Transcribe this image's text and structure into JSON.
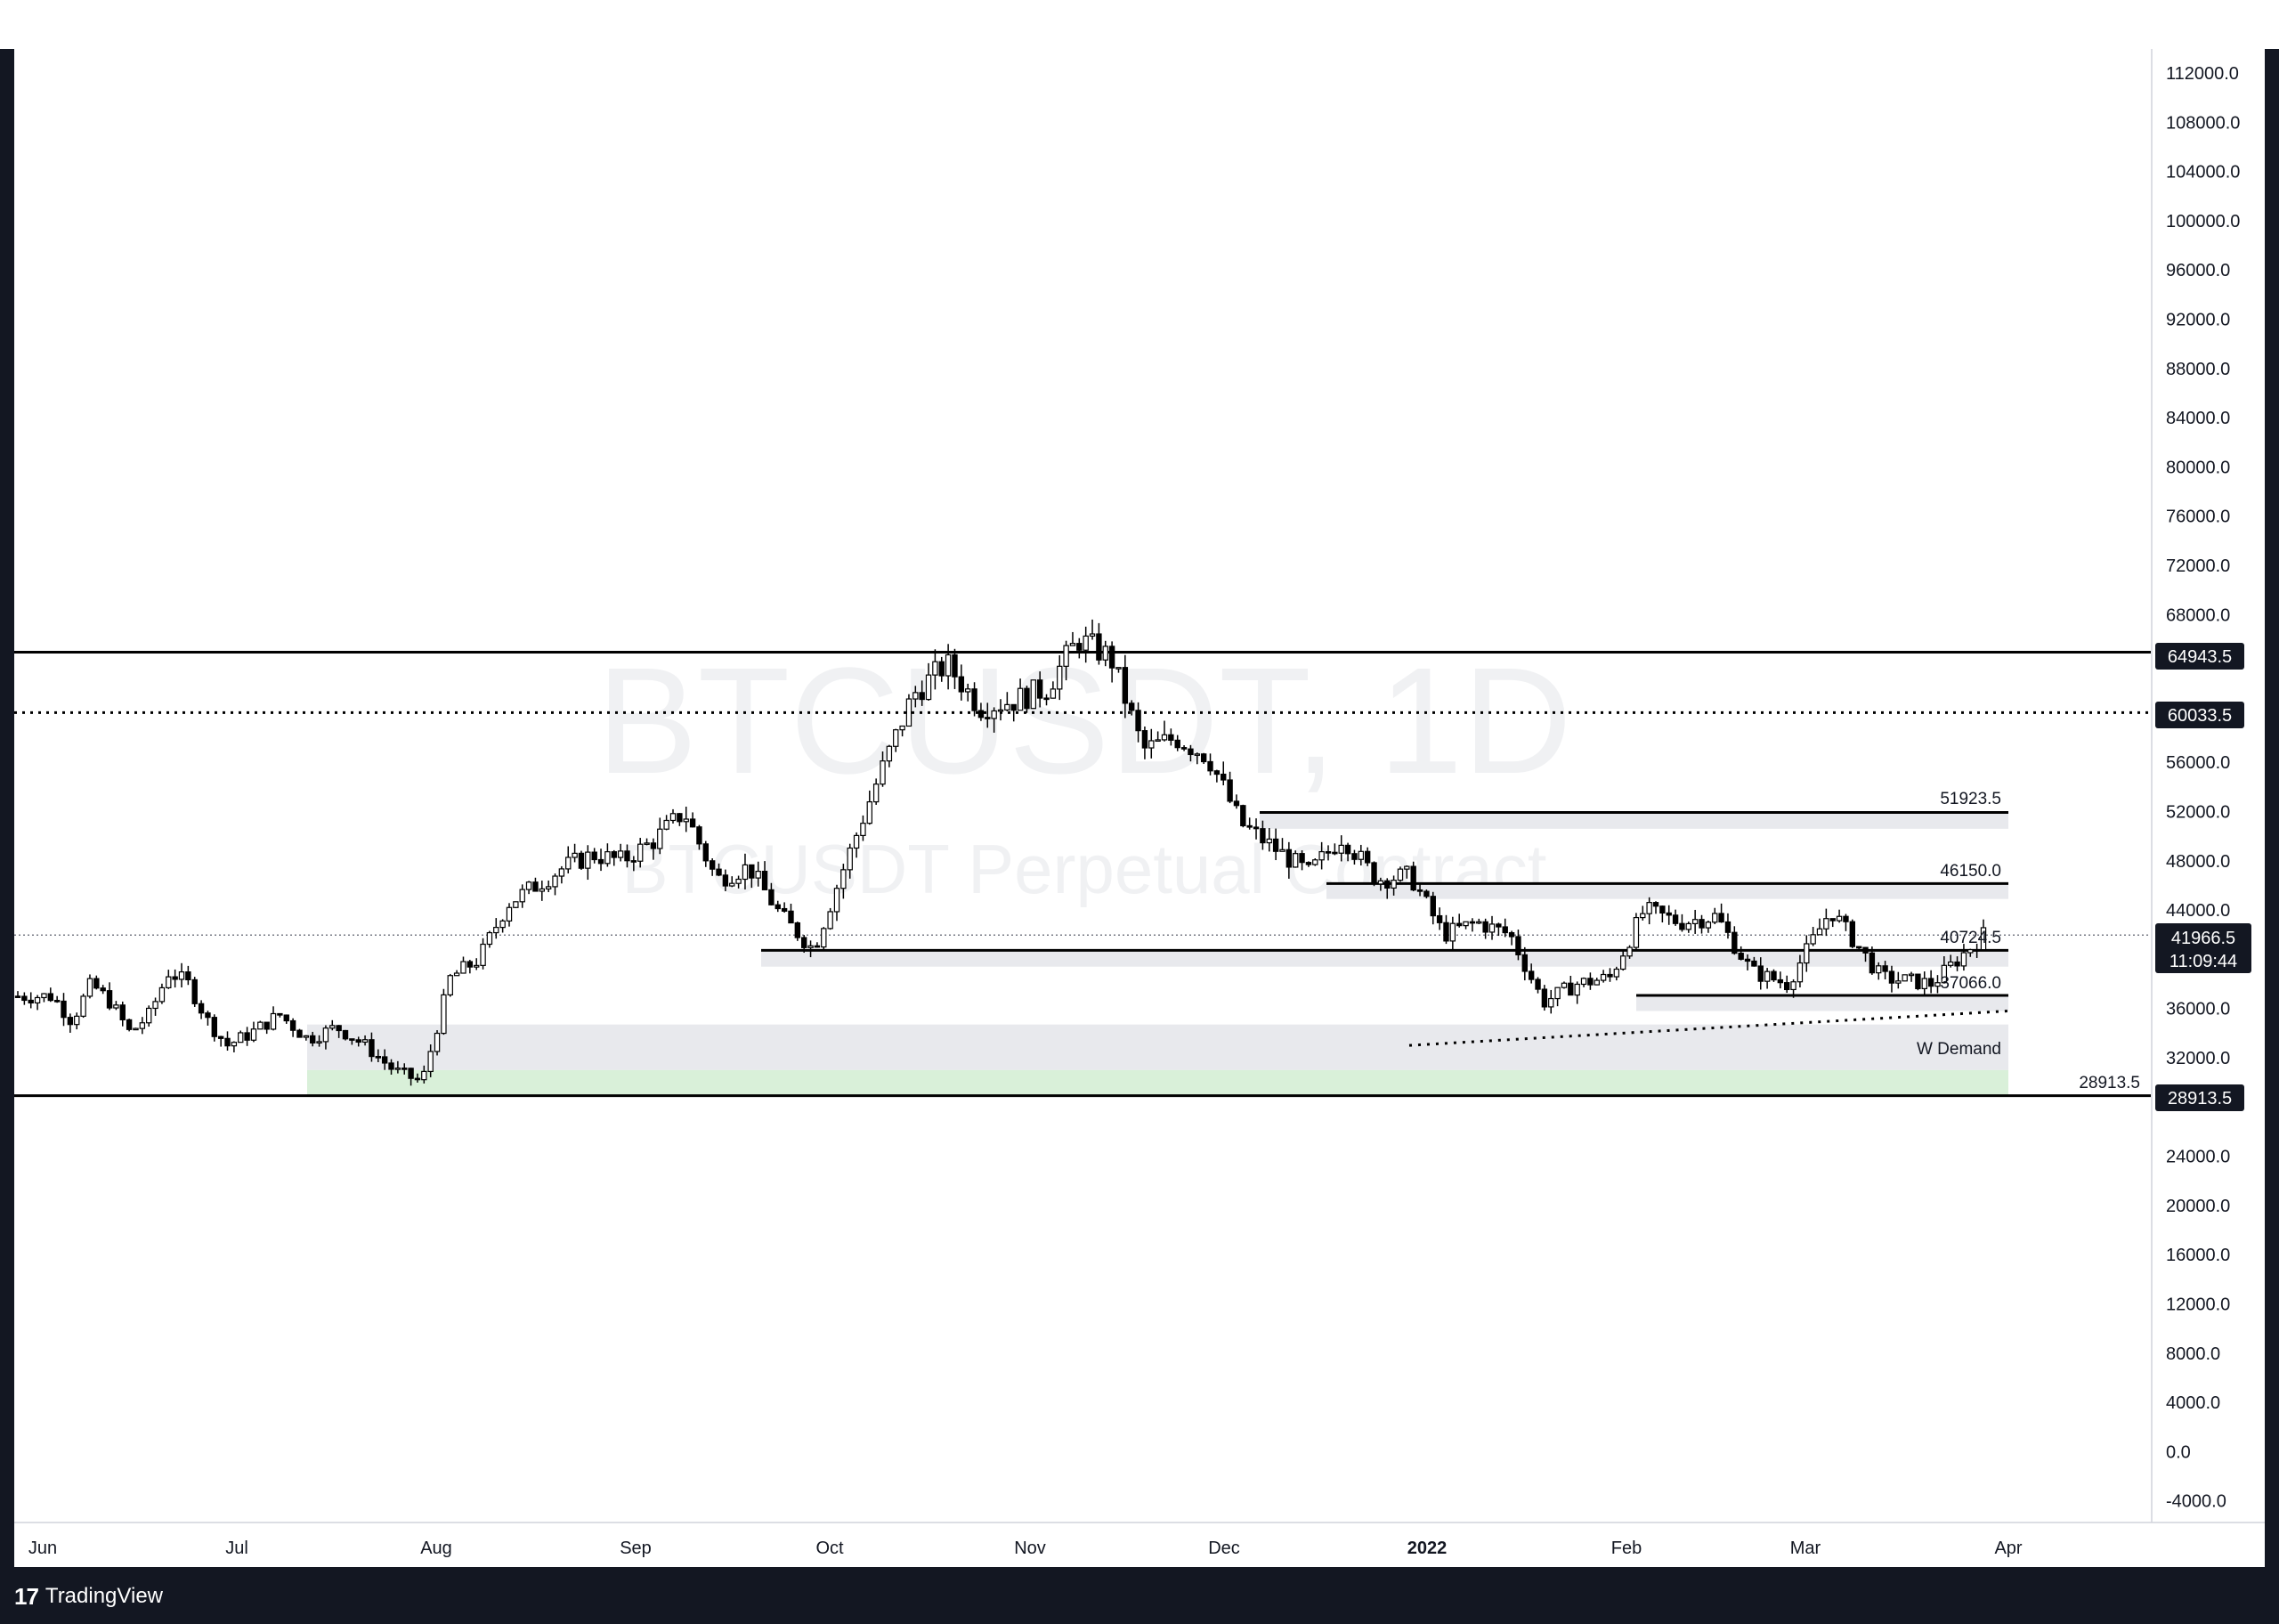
{
  "watermark": {
    "title": "BTCUSDT, 1D",
    "subtitle": "BTCUSDT Perpetual Contract"
  },
  "brand": {
    "logo": "17",
    "name": "TradingView"
  },
  "colors": {
    "candle": "#000000",
    "zone_grey": "#e8e9ed",
    "zone_green": "#d9f0d9",
    "axis_text": "#131722",
    "label_bg": "#131722",
    "label_text": "#ffffff",
    "frame": "#131722",
    "watermark": "#f0f1f3"
  },
  "price_axis": {
    "ticks": [
      "112000.0",
      "108000.0",
      "104000.0",
      "100000.0",
      "96000.0",
      "92000.0",
      "88000.0",
      "84000.0",
      "80000.0",
      "76000.0",
      "72000.0",
      "68000.0",
      "56000.0",
      "52000.0",
      "48000.0",
      "44000.0",
      "36000.0",
      "32000.0",
      "24000.0",
      "20000.0",
      "16000.0",
      "12000.0",
      "8000.0",
      "4000.0",
      "0.0",
      "-4000.0"
    ],
    "current_price": "41966.5",
    "countdown": "11:09:44",
    "price_labels": [
      "64943.5",
      "60033.5",
      "28913.5"
    ]
  },
  "time_axis": {
    "labels": [
      "Jun",
      "Jul",
      "Aug",
      "Sep",
      "Oct",
      "Nov",
      "Dec",
      "2022",
      "Feb",
      "Mar",
      "Apr"
    ]
  },
  "annotations": {
    "levels": [
      "51923.5",
      "46150.0",
      "40724.5",
      "37066.0",
      "28913.5"
    ],
    "zone_label": "W Demand"
  },
  "chart_data": {
    "type": "candlestick",
    "title": "BTCUSDT, 1D",
    "subtitle": "BTCUSDT Perpetual Contract",
    "ylim": [
      -4000,
      112000
    ],
    "x": [
      "Jun",
      "Jul",
      "Aug",
      "Sep",
      "Oct",
      "Nov",
      "Dec",
      "2022",
      "Feb",
      "Mar",
      "Apr"
    ],
    "close_path": [
      [
        "Jun",
        37000
      ],
      [
        "Jun",
        35000
      ],
      [
        "Jun",
        38000
      ],
      [
        "Jun",
        36500
      ],
      [
        "Jun",
        34000
      ],
      [
        "Jun",
        35500
      ],
      [
        "Jun",
        39000
      ],
      [
        "Jun",
        38000
      ],
      [
        "Jun",
        35000
      ],
      [
        "Jun",
        33000
      ],
      [
        "Jul",
        34000
      ],
      [
        "Jul",
        35500
      ],
      [
        "Jul",
        33500
      ],
      [
        "Jul",
        34500
      ],
      [
        "Jul",
        33000
      ],
      [
        "Jul",
        31000
      ],
      [
        "Jul",
        30000
      ],
      [
        "Aug",
        38500
      ],
      [
        "Aug",
        40000
      ],
      [
        "Aug",
        44500
      ],
      [
        "Aug",
        46000
      ],
      [
        "Aug",
        47500
      ],
      [
        "Aug",
        48500
      ],
      [
        "Aug",
        48000
      ],
      [
        "Sep",
        49500
      ],
      [
        "Sep",
        52000
      ],
      [
        "Sep",
        46500
      ],
      [
        "Sep",
        47500
      ],
      [
        "Sep",
        43500
      ],
      [
        "Sep",
        40800
      ],
      [
        "Oct",
        48000
      ],
      [
        "Oct",
        55000
      ],
      [
        "Oct",
        61500
      ],
      [
        "Oct",
        64000
      ],
      [
        "Oct",
        60500
      ],
      [
        "Oct",
        61000
      ],
      [
        "Nov",
        62000
      ],
      [
        "Nov",
        66000
      ],
      [
        "Nov",
        64500
      ],
      [
        "Nov",
        57000
      ],
      [
        "Nov",
        58000
      ],
      [
        "Nov",
        56500
      ],
      [
        "Dec",
        51000
      ],
      [
        "Dec",
        49000
      ],
      [
        "Dec",
        47000
      ],
      [
        "Dec",
        50000
      ],
      [
        "Dec",
        46500
      ],
      [
        "Dec",
        46800
      ],
      [
        "2022",
        42000
      ],
      [
        "2022",
        43000
      ],
      [
        "2022",
        42000
      ],
      [
        "2022",
        36500
      ],
      [
        "2022",
        38000
      ],
      [
        "2022",
        38500
      ],
      [
        "Feb",
        44000
      ],
      [
        "Feb",
        43000
      ],
      [
        "Feb",
        43500
      ],
      [
        "Feb",
        39000
      ],
      [
        "Feb",
        38000
      ],
      [
        "Mar",
        44000
      ],
      [
        "Mar",
        38500
      ],
      [
        "Mar",
        38000
      ],
      [
        "Mar",
        41966.5
      ]
    ],
    "horizontal_levels": [
      {
        "value": 64943.5,
        "style": "solid"
      },
      {
        "value": 60033.5,
        "style": "dotted"
      },
      {
        "value": 51923.5,
        "style": "solid"
      },
      {
        "value": 46150.0,
        "style": "solid"
      },
      {
        "value": 40724.5,
        "style": "solid"
      },
      {
        "value": 37066.0,
        "style": "solid"
      },
      {
        "value": 28913.5,
        "style": "solid"
      }
    ],
    "zones": [
      {
        "from": 50600,
        "to": 51923.5,
        "color": "grey"
      },
      {
        "from": 44900,
        "to": 46150,
        "color": "grey"
      },
      {
        "from": 39400,
        "to": 40724.5,
        "color": "grey"
      },
      {
        "from": 35800,
        "to": 37066,
        "color": "grey"
      },
      {
        "label": "W Demand",
        "from": 31000,
        "to": 34700,
        "color": "grey"
      },
      {
        "from": 28913.5,
        "to": 31000,
        "color": "green"
      }
    ],
    "trendline": {
      "style": "dotted",
      "from": [
        "2022",
        33000
      ],
      "to": [
        "Mar",
        35800
      ]
    },
    "current_price": 41966.5
  }
}
